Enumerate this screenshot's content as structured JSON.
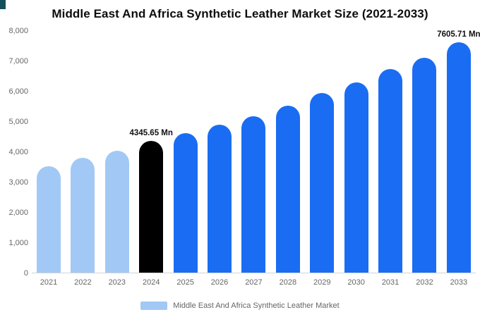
{
  "page": {
    "title": "Middle East And Africa Synthetic Leather Market Size (2021-2033)"
  },
  "legend": {
    "label": "Middle East And Africa Synthetic Leather Market",
    "swatch_color": "#A2C9F5"
  },
  "colors": {
    "light_blue": "#A2C9F5",
    "highlight_black": "#000000",
    "primary_blue": "#1A6DF2",
    "axis_text": "#666666",
    "axis_line": "#d4d4d4",
    "corner_accent": "#14505a"
  },
  "chart_data": {
    "type": "bar",
    "title": "Middle East And Africa Synthetic Leather Market Size (2021-2033)",
    "xlabel": "",
    "ylabel": "",
    "categories": [
      "2021",
      "2022",
      "2023",
      "2024",
      "2025",
      "2026",
      "2027",
      "2028",
      "2029",
      "2030",
      "2031",
      "2032",
      "2033"
    ],
    "values": [
      3500,
      3780,
      4030,
      4345.65,
      4600,
      4890,
      5170,
      5520,
      5940,
      6290,
      6730,
      7090,
      7605.71
    ],
    "unit": "Mn",
    "bar_colors": [
      "#A2C9F5",
      "#A2C9F5",
      "#A2C9F5",
      "#000000",
      "#1A6DF2",
      "#1A6DF2",
      "#1A6DF2",
      "#1A6DF2",
      "#1A6DF2",
      "#1A6DF2",
      "#1A6DF2",
      "#1A6DF2",
      "#1A6DF2"
    ],
    "annotations": [
      {
        "index": 3,
        "text": "4345.65 Mn"
      },
      {
        "index": 12,
        "text": "7605.71 Mn"
      }
    ],
    "ylim": [
      0,
      8000
    ],
    "yticks": [
      0,
      1000,
      2000,
      3000,
      4000,
      5000,
      6000,
      7000,
      8000
    ],
    "ytick_labels": [
      "0",
      "1,000",
      "2,000",
      "3,000",
      "4,000",
      "5,000",
      "6,000",
      "7,000",
      "8,000"
    ],
    "grid": false,
    "legend_position": "bottom",
    "legend_entries": [
      "Middle East And Africa Synthetic Leather Market"
    ]
  }
}
